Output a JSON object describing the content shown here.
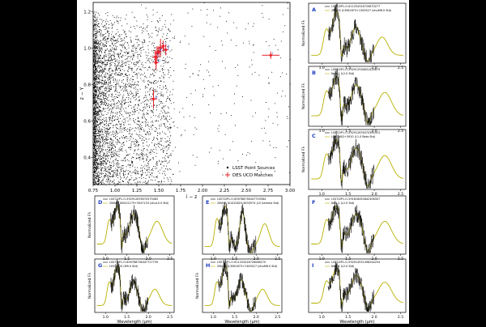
{
  "chart_data": [
    {
      "id": "main",
      "type": "scatter",
      "xlabel": "i − z",
      "ylabel": "z − Y",
      "xlim": [
        0.75,
        3.0
      ],
      "ylim": [
        0.25,
        1.25
      ],
      "xticks": [
        0.75,
        1.0,
        1.25,
        1.5,
        1.75,
        2.0,
        2.25,
        2.5,
        2.75,
        3.0
      ],
      "xtick_labels": [
        "0.75",
        "1.00",
        "1.25",
        "1.50",
        "1.75",
        "2.00",
        "2.25",
        "2.50",
        "2.75",
        "3.00"
      ],
      "yticks": [
        0.4,
        0.6,
        0.8,
        1.0,
        1.2
      ],
      "ytick_labels": [
        "0.4",
        "0.6",
        "0.8",
        "1.0",
        "1.2"
      ],
      "legend": {
        "position": "bottom-right",
        "entries": [
          "LSST Point Sources",
          "DES UCD Matches"
        ]
      },
      "series": [
        {
          "name": "DES UCD Matches",
          "color": "#e8202a",
          "points": [
            {
              "label": "A",
              "x": 1.52,
              "y": 1.0,
              "xerr": 0.04,
              "yerr": 0.05
            },
            {
              "label": "B",
              "x": 1.48,
              "y": 0.97,
              "xerr": 0.03,
              "yerr": 0.04
            },
            {
              "label": "C",
              "x": 1.55,
              "y": 1.01,
              "xerr": 0.03,
              "yerr": 0.03
            },
            {
              "label": "D",
              "x": 1.46,
              "y": 0.95,
              "xerr": 0.03,
              "yerr": 0.04
            },
            {
              "label": "E",
              "x": 1.58,
              "y": 0.99,
              "xerr": 0.03,
              "yerr": 0.03
            },
            {
              "label": "F",
              "x": 1.5,
              "y": 0.98,
              "xerr": 0.03,
              "yerr": 0.03
            },
            {
              "label": "G",
              "x": 1.47,
              "y": 0.92,
              "xerr": 0.03,
              "yerr": 0.04
            },
            {
              "label": "H",
              "x": 1.44,
              "y": 0.72,
              "xerr": 0.04,
              "yerr": 0.05
            },
            {
              "label": "I",
              "x": 2.78,
              "y": 0.96,
              "xerr": 0.1,
              "yerr": 0.02
            }
          ]
        }
      ]
    },
    {
      "id": "A",
      "type": "line",
      "letter": "A",
      "ylabel": "Normalized Fλ",
      "legend": [
        "LSST-DP1-O-611254316720870277",
        "2MASS J13561873+1300527 (dnuM6.0 Std)"
      ],
      "xlabel": "",
      "xticks": [
        1.0,
        1.5,
        2.0,
        2.5
      ],
      "xtick_labels": [
        "1.0",
        "1.5",
        "2.0",
        "2.5"
      ],
      "xlim": [
        0.75,
        2.6
      ],
      "ylim": [
        0,
        1.15
      ],
      "template": "m",
      "seed": 11
    },
    {
      "id": "B",
      "type": "line",
      "letter": "B",
      "ylabel": "Normalized Fλ",
      "legend": [
        "LSST-DP1-O-592912536631424679",
        "Kelu-1 (L2.0 Std)"
      ],
      "xlabel": "",
      "xticks": [
        1.0,
        1.5,
        2.0,
        2.5
      ],
      "xtick_labels": [
        "1.0",
        "1.5",
        "2.0",
        "2.5"
      ],
      "xlim": [
        0.75,
        2.6
      ],
      "ylim": [
        0,
        1.15
      ],
      "template": "l",
      "seed": 23
    },
    {
      "id": "C",
      "type": "line",
      "letter": "C",
      "ylabel": "Normalized Fλ",
      "legend": [
        "LSST-DP1-O-592912676070361415",
        "LSR 0602+3910 (L1.0 Beta Std)"
      ],
      "xlabel": "",
      "xticks": [
        1.0,
        1.5,
        2.0,
        2.5
      ],
      "xtick_labels": [
        "1.0",
        "1.5",
        "2.0",
        "2.5"
      ],
      "xlim": [
        0.75,
        2.6
      ],
      "ylim": [
        0,
        1.15
      ],
      "template": "lb",
      "seed": 37
    },
    {
      "id": "D",
      "type": "line",
      "letter": "D",
      "ylabel": "Normalized Fλ",
      "legend": [
        "LSST-DP1-O-592912676070375482",
        "2MASS J00412179+3547133 (dnuL0.0 Std)"
      ],
      "xlabel": "",
      "xticks": [
        1.0,
        1.5,
        2.0,
        2.5
      ],
      "xtick_labels": [
        "1.0",
        "1.5",
        "2.0",
        "2.5"
      ],
      "xlim": [
        0.75,
        2.6
      ],
      "ylim": [
        0,
        1.15
      ],
      "template": "l0",
      "seed": 41
    },
    {
      "id": "E",
      "type": "line",
      "letter": "E",
      "ylabel": "",
      "legend": [
        "LSST-DP1-O-609788736447729584",
        "2MASS J01415823-4633574 (L0 Gamma Std)"
      ],
      "xlabel": "",
      "xticks": [
        1.0,
        1.5,
        2.0,
        2.5
      ],
      "xtick_labels": [
        "1.0",
        "1.5",
        "2.0",
        "2.5"
      ],
      "xlim": [
        0.75,
        2.6
      ],
      "ylim": [
        0,
        1.15
      ],
      "template": "g",
      "seed": 53
    },
    {
      "id": "F",
      "type": "line",
      "letter": "F",
      "ylabel": "",
      "legend": [
        "LSST-DP1-O-591818455842308307",
        "Kelu-1 (L2.0 Std)"
      ],
      "xlabel": "",
      "xticks": [
        1.0,
        1.5,
        2.0,
        2.5
      ],
      "xtick_labels": [
        "1.0",
        "1.5",
        "2.0",
        "2.5"
      ],
      "xlim": [
        0.75,
        2.6
      ],
      "ylim": [
        0,
        1.15
      ],
      "template": "l",
      "seed": 67
    },
    {
      "id": "G",
      "type": "line",
      "letter": "G",
      "ylabel": "Normalized Fλ",
      "legend": [
        "LSST-DP1-O-609788736447727739",
        "LHS 2924 (M9.0 Std)"
      ],
      "xlabel": "Wavelength (μm)",
      "xticks": [
        1.0,
        1.5,
        2.0,
        2.5
      ],
      "xtick_labels": [
        "1.0",
        "1.5",
        "2.0",
        "2.5"
      ],
      "xlim": [
        0.75,
        2.6
      ],
      "ylim": [
        0,
        1.15
      ],
      "template": "m",
      "seed": 79
    },
    {
      "id": "H",
      "type": "line",
      "letter": "H",
      "ylabel": "Normalized Fλ",
      "legend": [
        "LSST-DP1-O-611254316728068170",
        "2MASS J13561873+1300527 (dnuM6.0 Std)"
      ],
      "xlabel": "Wavelength (μm)",
      "xticks": [
        1.0,
        1.5,
        2.0,
        2.5
      ],
      "xtick_labels": [
        "1.0",
        "1.5",
        "2.0",
        "2.5"
      ],
      "xlim": [
        0.75,
        2.6
      ],
      "ylim": [
        0,
        1.15
      ],
      "template": "m",
      "seed": 83
    },
    {
      "id": "I",
      "type": "line",
      "letter": "I",
      "ylabel": "",
      "legend": [
        "LSST-DP1-O-592914531496244254",
        "Kelu-1 (L2.0 Std)"
      ],
      "xlabel": "Wavelength (μm)",
      "xticks": [
        1.0,
        1.5,
        2.0,
        2.5
      ],
      "xtick_labels": [
        "1.0",
        "1.5",
        "2.0",
        "2.5"
      ],
      "xlim": [
        0.75,
        2.6
      ],
      "ylim": [
        0,
        1.15
      ],
      "template": "l",
      "seed": 97
    }
  ],
  "colors": {
    "observed": "#000000",
    "template": "#b8b000",
    "match": "#e8202a",
    "letter": "#1f3fbf",
    "scatter": "#000000"
  }
}
